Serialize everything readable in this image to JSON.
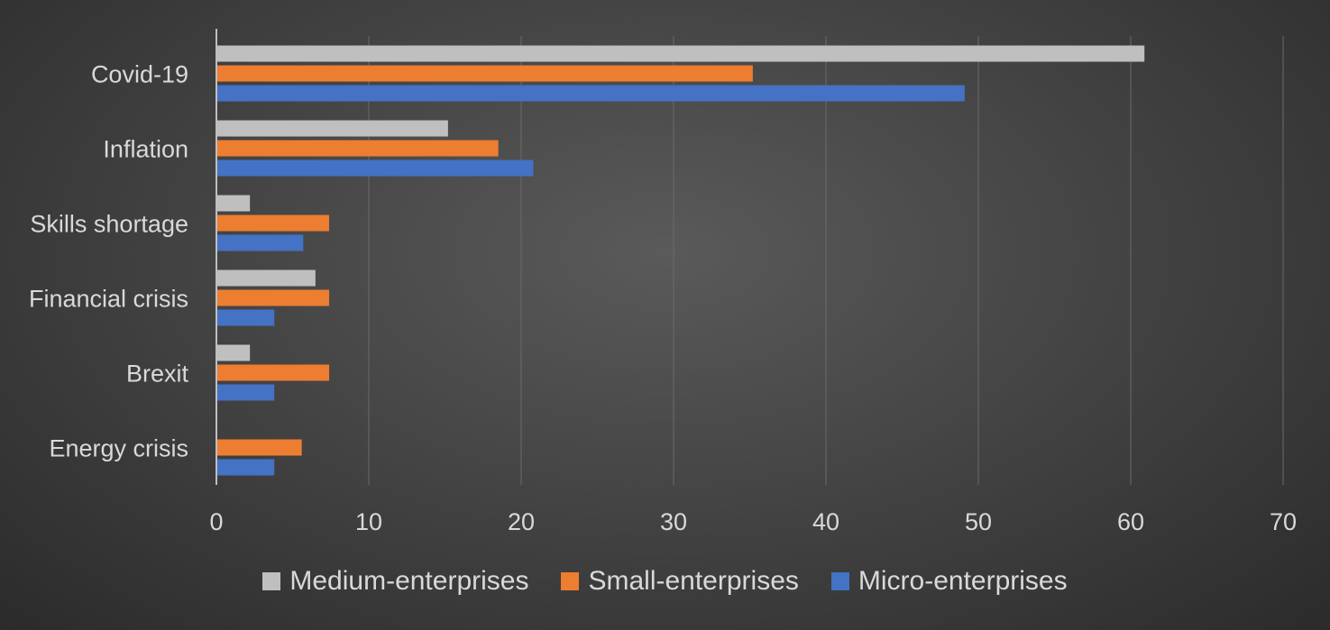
{
  "chart_data": {
    "type": "bar",
    "orientation": "horizontal",
    "title": "",
    "xlabel": "",
    "ylabel": "",
    "categories": [
      "Covid-19",
      "Inflation",
      "Skills shortage",
      "Financial crisis",
      "Brexit",
      "Energy crisis"
    ],
    "series": [
      {
        "name": "Medium-enterprises",
        "color": "#bfbfbf",
        "values": [
          60.9,
          15.2,
          2.2,
          6.5,
          2.2,
          0
        ]
      },
      {
        "name": "Small-enterprises",
        "color": "#ed7d31",
        "values": [
          35.2,
          18.5,
          7.4,
          7.4,
          7.4,
          5.6
        ]
      },
      {
        "name": "Micro-enterprises",
        "color": "#4472c4",
        "values": [
          49.1,
          20.8,
          5.7,
          3.8,
          3.8,
          3.8
        ]
      }
    ],
    "xlim": [
      0,
      70
    ],
    "xticks": [
      "0",
      "10",
      "20",
      "30",
      "40",
      "50",
      "60",
      "70"
    ],
    "grid": true,
    "legend_position": "bottom"
  }
}
